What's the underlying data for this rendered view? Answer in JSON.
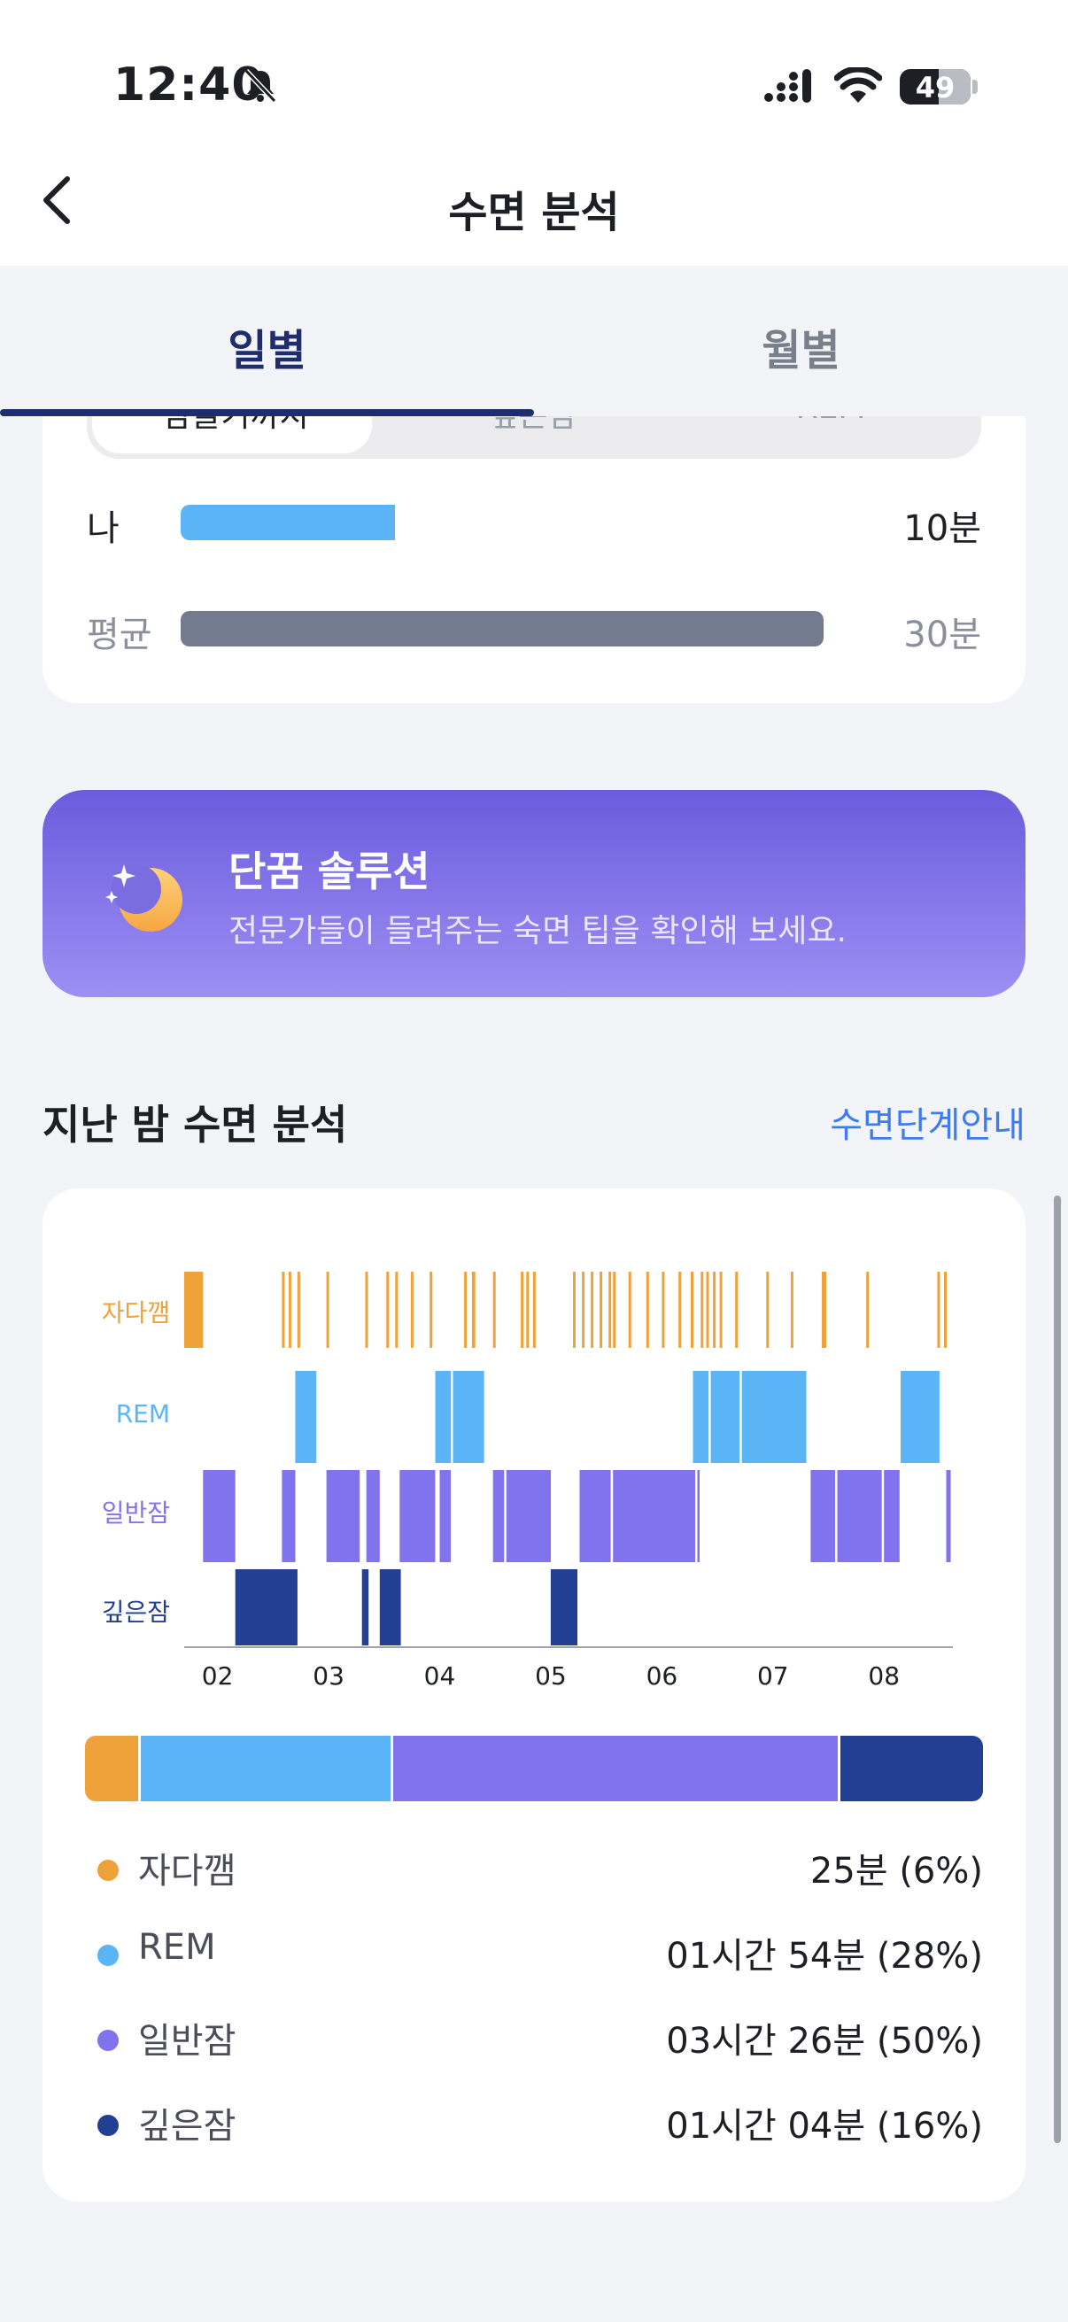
{
  "status_bar": {
    "time": "12:40",
    "battery": "49"
  },
  "nav": {
    "title": "수면 분석"
  },
  "tabs": [
    {
      "label": "일별"
    },
    {
      "label": "월별"
    }
  ],
  "compare_card": {
    "segments": [
      {
        "label": "잠들기까지"
      },
      {
        "label": "깊은잠"
      },
      {
        "label": "REM"
      }
    ],
    "rows": [
      {
        "label": "나",
        "value": "10분",
        "fraction": 0.333
      },
      {
        "label": "평균",
        "value": "30분",
        "fraction": 1.0
      }
    ]
  },
  "banner": {
    "title": "단꿈 솔루션",
    "subtitle": "전문가들이 들려주는 숙면 팁을 확인해 보세요."
  },
  "section": {
    "title": "지난 밤 수면 분석",
    "link": "수면단계안내"
  },
  "colors": {
    "awake": "#f0a23a",
    "rem": "#5ab4f5",
    "light": "#8172ee",
    "deep": "#233f93"
  },
  "chart_data": {
    "type": "hypnogram",
    "stage_labels": [
      "자다깸",
      "REM",
      "일반잠",
      "깊은잠"
    ],
    "x_ticks": [
      "02",
      "03",
      "04",
      "05",
      "06",
      "07",
      "08"
    ],
    "x_tick_hours": [
      2,
      3,
      4,
      5,
      6,
      7,
      8
    ],
    "xlim": [
      1.7,
      8.62
    ],
    "segments": {
      "awake": [
        [
          1.7,
          1.87
        ],
        [
          2.58,
          2.6
        ],
        [
          2.64,
          2.66
        ],
        [
          2.72,
          2.74
        ],
        [
          2.98,
          3.0
        ],
        [
          3.33,
          3.35
        ],
        [
          3.52,
          3.54
        ],
        [
          3.6,
          3.62
        ],
        [
          3.74,
          3.76
        ],
        [
          3.91,
          3.93
        ],
        [
          4.22,
          4.24
        ],
        [
          4.29,
          4.32
        ],
        [
          4.48,
          4.5
        ],
        [
          4.73,
          4.75
        ],
        [
          4.78,
          4.8
        ],
        [
          4.84,
          4.86
        ],
        [
          5.2,
          5.22
        ],
        [
          5.28,
          5.3
        ],
        [
          5.36,
          5.38
        ],
        [
          5.44,
          5.46
        ],
        [
          5.52,
          5.54
        ],
        [
          5.56,
          5.58
        ],
        [
          5.7,
          5.72
        ],
        [
          5.86,
          5.88
        ],
        [
          6.0,
          6.02
        ],
        [
          6.15,
          6.17
        ],
        [
          6.26,
          6.28
        ],
        [
          6.35,
          6.37
        ],
        [
          6.4,
          6.42
        ],
        [
          6.46,
          6.48
        ],
        [
          6.52,
          6.54
        ],
        [
          6.66,
          6.68
        ],
        [
          6.94,
          6.96
        ],
        [
          7.16,
          7.18
        ],
        [
          7.44,
          7.48
        ],
        [
          7.84,
          7.86
        ],
        [
          8.48,
          8.5
        ],
        [
          8.54,
          8.56
        ]
      ],
      "rem": [
        [
          2.7,
          2.89
        ],
        [
          3.96,
          4.1
        ],
        [
          4.12,
          4.4
        ],
        [
          6.28,
          6.42
        ],
        [
          6.44,
          6.7
        ],
        [
          6.72,
          7.3
        ],
        [
          8.15,
          8.5
        ]
      ],
      "light": [
        [
          1.87,
          2.16
        ],
        [
          2.58,
          2.7
        ],
        [
          2.98,
          3.28
        ],
        [
          3.34,
          3.46
        ],
        [
          3.64,
          3.96
        ],
        [
          4.0,
          4.1
        ],
        [
          4.48,
          4.58
        ],
        [
          4.6,
          5.0
        ],
        [
          5.26,
          5.54
        ],
        [
          5.56,
          6.3
        ],
        [
          6.32,
          6.34
        ],
        [
          7.34,
          7.56
        ],
        [
          7.58,
          7.98
        ],
        [
          8.0,
          8.14
        ],
        [
          8.56,
          8.6
        ]
      ],
      "deep": [
        [
          2.16,
          2.72
        ],
        [
          3.3,
          3.36
        ],
        [
          3.46,
          3.65
        ],
        [
          5.0,
          5.24
        ]
      ]
    }
  },
  "stage_summary": [
    {
      "stage": "awake",
      "label": "자다깸",
      "value": "25분 (6%)",
      "share": 6
    },
    {
      "stage": "rem",
      "label": "REM",
      "value": "01시간 54분 (28%)",
      "share": 28
    },
    {
      "stage": "light",
      "label": "일반잠",
      "value": "03시간 26분 (50%)",
      "share": 50
    },
    {
      "stage": "deep",
      "label": "깊은잠",
      "value": "01시간 04분 (16%)",
      "share": 16
    }
  ]
}
